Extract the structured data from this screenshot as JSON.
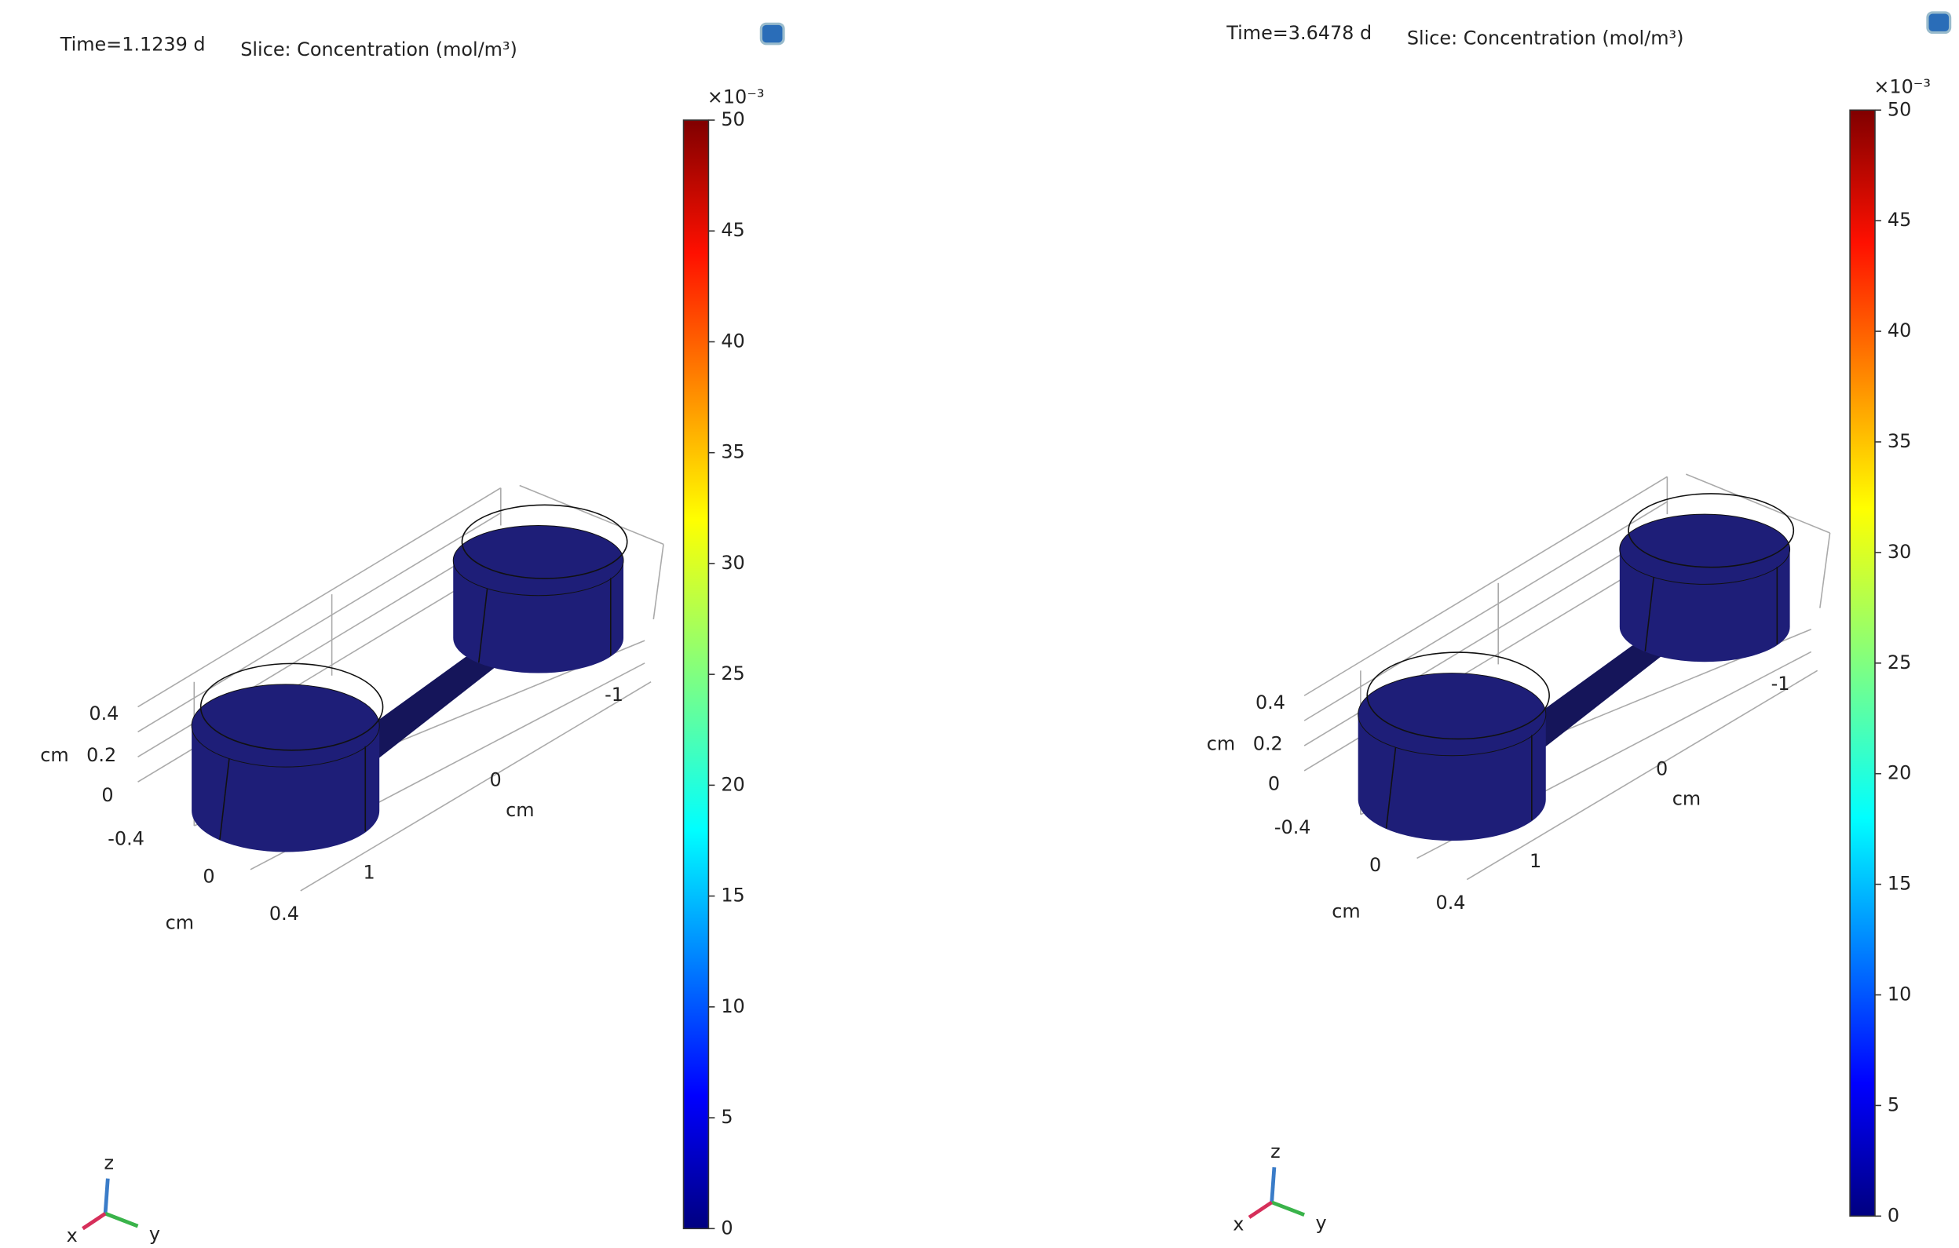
{
  "panels": [
    {
      "time": "Time=1.1239 d",
      "title": "Slice: Concentration (mol/m³)",
      "colorbar": {
        "multiplier": "×10⁻³",
        "lim": [
          0,
          50
        ],
        "ticks": [
          0,
          5,
          10,
          15,
          20,
          25,
          30,
          35,
          40,
          45,
          50
        ]
      },
      "axes": {
        "z_unit": "cm",
        "z_ticks": [
          "0.4",
          "0.2",
          "0",
          "-0.4"
        ],
        "x_unit": "cm",
        "x_ticks": [
          "0",
          "0.4"
        ],
        "y_unit": "cm",
        "y_ticks": [
          "1",
          "0",
          "-1"
        ]
      },
      "triad": [
        "x",
        "y",
        "z"
      ]
    },
    {
      "time": "Time=3.6478 d",
      "title": "Slice: Concentration (mol/m³)",
      "colorbar": {
        "multiplier": "×10⁻³",
        "lim": [
          0,
          50
        ],
        "ticks": [
          0,
          5,
          10,
          15,
          20,
          25,
          30,
          35,
          40,
          45,
          50
        ]
      },
      "axes": {
        "z_unit": "cm",
        "z_ticks": [
          "0.4",
          "0.2",
          "0",
          "-0.4"
        ],
        "x_unit": "cm",
        "x_ticks": [
          "0",
          "0.4"
        ],
        "y_unit": "cm",
        "y_ticks": [
          "1",
          "0",
          "-1"
        ]
      },
      "triad": [
        "x",
        "y",
        "z"
      ]
    }
  ]
}
